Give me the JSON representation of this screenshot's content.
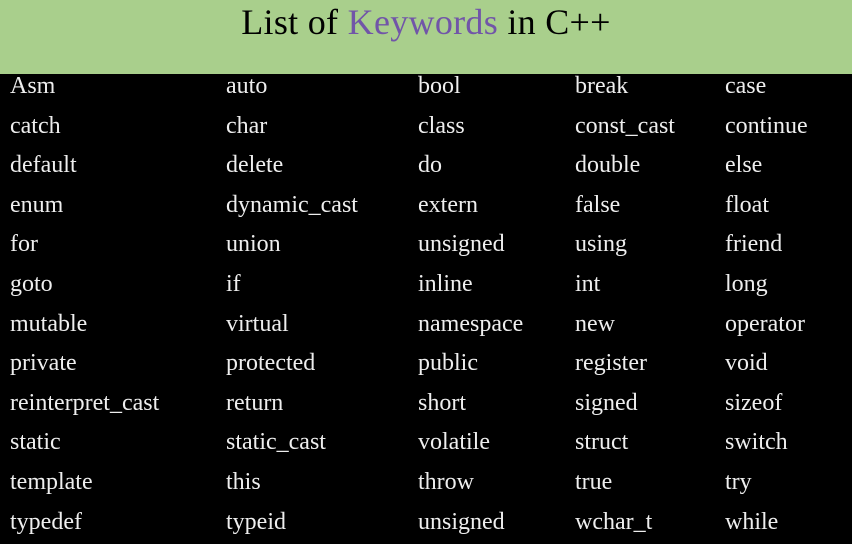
{
  "title": {
    "prefix": "List of ",
    "accent": "Keywords",
    "suffix": " in C++",
    "accent_color": "#7155a8"
  },
  "colors": {
    "title_bar": "#a9cf8c",
    "background": "#000000",
    "text": "#eeeeee"
  },
  "keywords": [
    [
      "Asm",
      "auto",
      "bool",
      "break",
      "case"
    ],
    [
      "catch",
      "char",
      "class",
      "const_cast",
      "continue"
    ],
    [
      "default",
      "delete",
      "do",
      "double",
      "else"
    ],
    [
      "enum",
      "dynamic_cast",
      "extern",
      "false",
      "float"
    ],
    [
      "for",
      "union",
      "unsigned",
      "using",
      "friend"
    ],
    [
      "goto",
      "if",
      "inline",
      "int",
      "long"
    ],
    [
      "mutable",
      "virtual",
      "namespace",
      "new",
      "operator"
    ],
    [
      "private",
      "protected",
      "public",
      "register",
      "void"
    ],
    [
      "reinterpret_cast",
      "return",
      "short",
      "signed",
      "sizeof"
    ],
    [
      "static",
      "static_cast",
      "volatile",
      "struct",
      "switch"
    ],
    [
      "template",
      "this",
      "throw",
      "true",
      "try"
    ],
    [
      "typedef",
      "typeid",
      "unsigned",
      "wchar_t",
      "while"
    ]
  ]
}
